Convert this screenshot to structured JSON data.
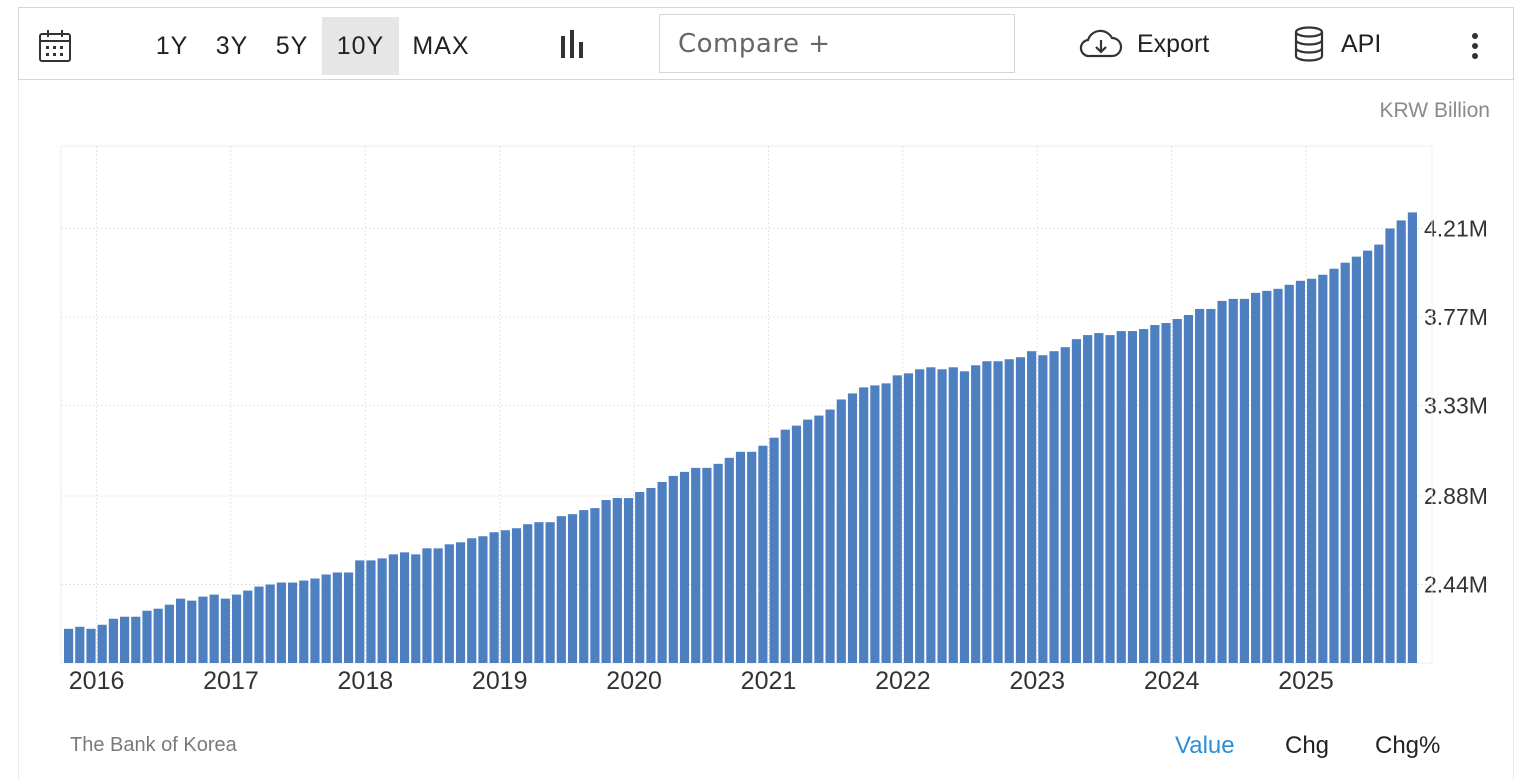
{
  "toolbar": {
    "ranges": [
      "1Y",
      "3Y",
      "5Y",
      "10Y",
      "MAX"
    ],
    "active_range": "10Y",
    "compare_label": "Compare +",
    "export_label": "Export",
    "api_label": "API"
  },
  "icons": [
    "calendar-icon",
    "bar-chart-icon",
    "cloud-download-icon",
    "database-icon",
    "more-vertical-icon"
  ],
  "colors": {
    "bar": "#4e7fc1",
    "accent": "#2b8fd6",
    "grid": "#e3e3e3"
  },
  "footer": {
    "source": "The Bank of Korea",
    "tabs": [
      "Value",
      "Chg",
      "Chg%"
    ],
    "active_tab": "Value"
  },
  "chart_data": {
    "type": "bar",
    "unit_label": "KRW Billion",
    "x_ticks": [
      "2016",
      "2017",
      "2018",
      "2019",
      "2020",
      "2021",
      "2022",
      "2023",
      "2024",
      "2025"
    ],
    "y_ticks": [
      "2.44M",
      "2.88M",
      "3.33M",
      "3.77M",
      "4.21M"
    ],
    "y_tick_values": [
      2.44,
      2.88,
      3.33,
      3.77,
      4.21
    ],
    "ylim": [
      2.05,
      4.62
    ],
    "grid": true,
    "x": [
      "2015-10",
      "2015-11",
      "2015-12",
      "2016-01",
      "2016-02",
      "2016-03",
      "2016-04",
      "2016-05",
      "2016-06",
      "2016-07",
      "2016-08",
      "2016-09",
      "2016-10",
      "2016-11",
      "2016-12",
      "2017-01",
      "2017-02",
      "2017-03",
      "2017-04",
      "2017-05",
      "2017-06",
      "2017-07",
      "2017-08",
      "2017-09",
      "2017-10",
      "2017-11",
      "2017-12",
      "2018-01",
      "2018-02",
      "2018-03",
      "2018-04",
      "2018-05",
      "2018-06",
      "2018-07",
      "2018-08",
      "2018-09",
      "2018-10",
      "2018-11",
      "2018-12",
      "2019-01",
      "2019-02",
      "2019-03",
      "2019-04",
      "2019-05",
      "2019-06",
      "2019-07",
      "2019-08",
      "2019-09",
      "2019-10",
      "2019-11",
      "2019-12",
      "2020-01",
      "2020-02",
      "2020-03",
      "2020-04",
      "2020-05",
      "2020-06",
      "2020-07",
      "2020-08",
      "2020-09",
      "2020-10",
      "2020-11",
      "2020-12",
      "2021-01",
      "2021-02",
      "2021-03",
      "2021-04",
      "2021-05",
      "2021-06",
      "2021-07",
      "2021-08",
      "2021-09",
      "2021-10",
      "2021-11",
      "2021-12",
      "2022-01",
      "2022-02",
      "2022-03",
      "2022-04",
      "2022-05",
      "2022-06",
      "2022-07",
      "2022-08",
      "2022-09",
      "2022-10",
      "2022-11",
      "2022-12",
      "2023-01",
      "2023-02",
      "2023-03",
      "2023-04",
      "2023-05",
      "2023-06",
      "2023-07",
      "2023-08",
      "2023-09",
      "2023-10",
      "2023-11",
      "2023-12",
      "2024-01",
      "2024-02",
      "2024-03",
      "2024-04",
      "2024-05",
      "2024-06",
      "2024-07",
      "2024-08",
      "2024-09",
      "2024-10",
      "2024-11",
      "2024-12",
      "2025-01",
      "2025-02",
      "2025-03",
      "2025-04",
      "2025-05",
      "2025-06",
      "2025-07",
      "2025-08",
      "2025-09",
      "2025-10"
    ],
    "values": [
      2.22,
      2.23,
      2.22,
      2.24,
      2.27,
      2.28,
      2.28,
      2.31,
      2.32,
      2.34,
      2.37,
      2.36,
      2.38,
      2.39,
      2.37,
      2.39,
      2.41,
      2.43,
      2.44,
      2.45,
      2.45,
      2.46,
      2.47,
      2.49,
      2.5,
      2.5,
      2.56,
      2.56,
      2.57,
      2.59,
      2.6,
      2.59,
      2.62,
      2.62,
      2.64,
      2.65,
      2.67,
      2.68,
      2.7,
      2.71,
      2.72,
      2.74,
      2.75,
      2.75,
      2.78,
      2.79,
      2.81,
      2.82,
      2.86,
      2.87,
      2.87,
      2.9,
      2.92,
      2.95,
      2.98,
      3.0,
      3.02,
      3.02,
      3.04,
      3.07,
      3.1,
      3.1,
      3.13,
      3.17,
      3.21,
      3.23,
      3.26,
      3.28,
      3.31,
      3.36,
      3.39,
      3.42,
      3.43,
      3.44,
      3.48,
      3.49,
      3.51,
      3.52,
      3.51,
      3.52,
      3.5,
      3.53,
      3.55,
      3.55,
      3.56,
      3.57,
      3.6,
      3.58,
      3.6,
      3.62,
      3.66,
      3.68,
      3.69,
      3.68,
      3.7,
      3.7,
      3.71,
      3.73,
      3.74,
      3.76,
      3.78,
      3.81,
      3.81,
      3.85,
      3.86,
      3.86,
      3.89,
      3.9,
      3.91,
      3.93,
      3.95,
      3.96,
      3.98,
      4.01,
      4.04,
      4.07,
      4.1,
      4.13,
      4.21,
      4.25,
      4.29
    ]
  }
}
